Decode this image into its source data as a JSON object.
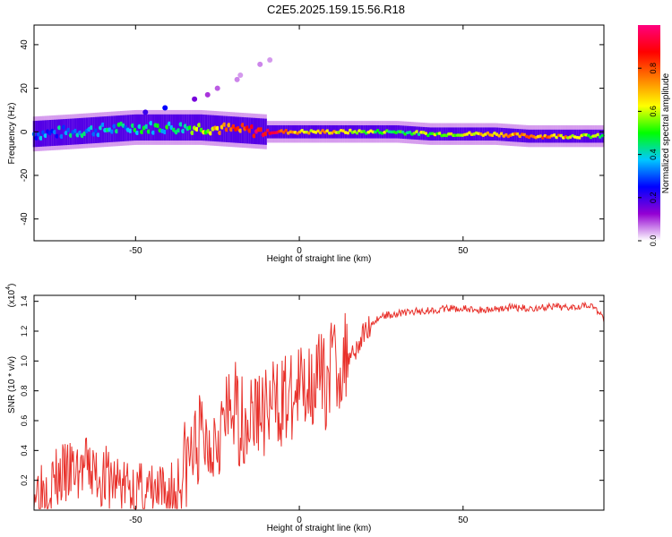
{
  "title": "C2E5.2025.159.15.56.R18",
  "chart_data": [
    {
      "type": "heatmap",
      "xlabel": "Height of straight line (km)",
      "ylabel": "Frequency (Hz)",
      "xlim": [
        -81,
        93
      ],
      "ylim": [
        -50,
        49
      ],
      "xticks": [
        -50,
        0,
        50
      ],
      "yticks": [
        -40,
        -20,
        0,
        20,
        40
      ],
      "colorbar": {
        "label": "Normalized spectral amplitude",
        "range": [
          0,
          1
        ],
        "ticks": [
          "0.0",
          "0.2",
          "0.4",
          "0.6",
          "0.8"
        ],
        "colors": [
          "#ffffff",
          "#9400d3",
          "#0000ff",
          "#00c8ff",
          "#00ff00",
          "#ffff00",
          "#ff8000",
          "#ff0000",
          "#ff007f"
        ]
      },
      "ridge": {
        "x": [
          -81,
          -70,
          -60,
          -50,
          -40,
          -30,
          -20,
          -10,
          0,
          10,
          20,
          30,
          40,
          50,
          60,
          70,
          80,
          93
        ],
        "frequency": [
          -1,
          0,
          1,
          2,
          2,
          2,
          1,
          0,
          0,
          0,
          0,
          0,
          -1,
          -1,
          -1,
          -2,
          -2,
          -2
        ],
        "amplitude": [
          0.3,
          0.35,
          0.38,
          0.4,
          0.45,
          0.55,
          0.75,
          0.95,
          0.7,
          0.65,
          0.55,
          0.5,
          0.55,
          0.6,
          0.7,
          0.75,
          0.7,
          0.5
        ]
      },
      "outliers": [
        {
          "x": -47,
          "frequency": 9,
          "amplitude": 0.2
        },
        {
          "x": -41,
          "frequency": 11,
          "amplitude": 0.25
        },
        {
          "x": -32,
          "frequency": 15,
          "amplitude": 0.15
        },
        {
          "x": -28,
          "frequency": 17,
          "amplitude": 0.1
        },
        {
          "x": -25,
          "frequency": 20,
          "amplitude": 0.08
        },
        {
          "x": -19,
          "frequency": 24,
          "amplitude": 0.06
        },
        {
          "x": -18,
          "frequency": 26,
          "amplitude": 0.05
        },
        {
          "x": -12,
          "frequency": 31,
          "amplitude": 0.06
        },
        {
          "x": -9,
          "frequency": 33,
          "amplitude": 0.05
        }
      ]
    },
    {
      "type": "line",
      "xlabel": "Height of straight line (km)",
      "ylabel": "SNR (10 * v/v)",
      "y_multiplier": "(x10",
      "y_multiplier_exp": "4",
      "y_multiplier_close": ")",
      "xlim": [
        -81,
        93
      ],
      "ylim": [
        0,
        1.44
      ],
      "xticks": [
        -50,
        0,
        50
      ],
      "yticks": [
        "0.2",
        "0.4",
        "0.6",
        "0.8",
        "1.0",
        "1.2",
        "1.4"
      ],
      "color": "#e8302a",
      "series": [
        {
          "x": [
            -81,
            -75,
            -70,
            -65,
            -60,
            -55,
            -50,
            -45,
            -40,
            -38,
            -35,
            -32,
            -30,
            -28,
            -25,
            -22,
            -20,
            -18,
            -15,
            -12,
            -10,
            -8,
            -5,
            -2,
            0,
            2,
            5,
            8,
            10,
            12,
            15,
            18,
            20,
            22,
            25,
            30,
            35,
            40,
            45,
            50,
            55,
            60,
            65,
            70,
            75,
            80,
            85,
            88,
            90,
            93
          ],
          "y": [
            0.15,
            0.2,
            0.25,
            0.28,
            0.22,
            0.18,
            0.12,
            0.1,
            0.08,
            0.12,
            0.3,
            0.4,
            0.5,
            0.45,
            0.55,
            0.6,
            0.7,
            0.6,
            0.62,
            0.68,
            0.65,
            0.7,
            0.75,
            0.72,
            0.8,
            0.85,
            0.9,
            0.85,
            1.0,
            0.95,
            1.05,
            1.1,
            1.2,
            1.25,
            1.3,
            1.32,
            1.33,
            1.34,
            1.35,
            1.35,
            1.34,
            1.35,
            1.36,
            1.35,
            1.36,
            1.36,
            1.37,
            1.38,
            1.36,
            1.28
          ]
        }
      ]
    }
  ]
}
